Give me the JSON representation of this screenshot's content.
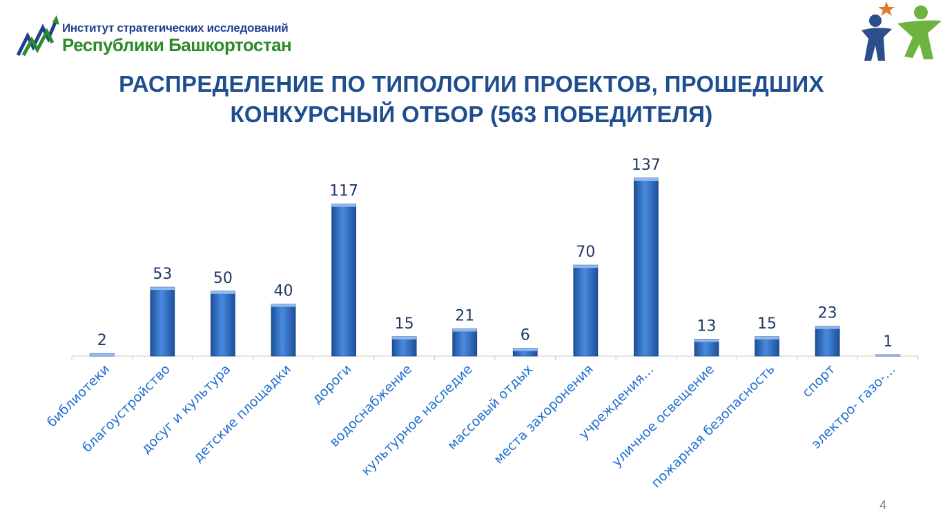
{
  "header": {
    "logo_line1": "Институт стратегических исследований",
    "logo_line2": "Республики Башкортостан",
    "emblem_icon": "people-star-icon"
  },
  "title": {
    "line1": "РАСПРЕДЕЛЕНИЕ ПО ТИПОЛОГИИ ПРОЕКТОВ, ПРОШЕДШИХ",
    "line2": "КОНКУРСНЫЙ ОТБОР (563 ПОБЕДИТЕЛЯ)"
  },
  "chart_data": {
    "type": "bar",
    "categories": [
      "библиотеки",
      "благоустройство",
      "досуг и культура",
      "детские площадки",
      "дороги",
      "водоснабжение",
      "культурное наследие",
      "массовый отдых",
      "места захоронения",
      "учреждения…",
      "уличное освещение",
      "пожарная безопасность",
      "спорт",
      "электро- газо-…"
    ],
    "values": [
      2,
      53,
      50,
      40,
      117,
      15,
      21,
      6,
      70,
      137,
      13,
      15,
      23,
      1
    ],
    "data_labels": true,
    "bar_color": "#2f6fc4",
    "label_color": "#1f3864",
    "category_label_color": "#1f6fd0",
    "ylim": [
      0,
      137
    ],
    "grid": false,
    "legend": "none"
  },
  "footer": {
    "page_number": "4"
  }
}
